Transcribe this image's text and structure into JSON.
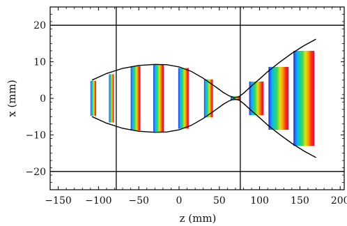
{
  "chart_data": {
    "type": "line",
    "xlabel": "z (mm)",
    "ylabel": "x (mm)",
    "xlim": [
      -160,
      205
    ],
    "ylim": [
      -25,
      25
    ],
    "grid": false,
    "x_ticks": [
      -150,
      -100,
      -50,
      0,
      50,
      100,
      150,
      200
    ],
    "y_ticks": [
      -20,
      -10,
      0,
      10,
      20
    ],
    "reference_lines": {
      "horizontal": [
        20,
        -20
      ],
      "vertical": [
        -78,
        76
      ]
    },
    "series": [
      {
        "role": "beam-envelope-upper",
        "x": [
          -108,
          -90,
          -70,
          -50,
          -30,
          -15,
          0,
          15,
          30,
          45,
          55,
          62,
          68,
          74,
          80,
          90,
          100,
          110,
          125,
          140,
          155,
          170
        ],
        "values": [
          5,
          6.8,
          8.2,
          9.0,
          9.3,
          9.2,
          8.6,
          7.4,
          5.5,
          3.2,
          1.6,
          0.7,
          0.2,
          0.4,
          1.4,
          3.4,
          5.3,
          7.3,
          9.9,
          12.3,
          14.4,
          16.2
        ]
      },
      {
        "role": "beam-envelope-lower",
        "x": [
          -108,
          -90,
          -70,
          -50,
          -30,
          -15,
          0,
          15,
          30,
          45,
          55,
          62,
          68,
          74,
          80,
          90,
          100,
          110,
          125,
          140,
          155,
          170
        ],
        "values": [
          -5,
          -6.8,
          -8.2,
          -9.0,
          -9.3,
          -9.2,
          -8.6,
          -7.4,
          -5.5,
          -3.2,
          -1.6,
          -0.7,
          -0.2,
          -0.4,
          -1.4,
          -3.4,
          -5.3,
          -7.3,
          -9.9,
          -12.3,
          -14.4,
          -16.2
        ]
      }
    ],
    "bands": [
      {
        "z0": -110,
        "z1": -103,
        "half_height": 4.8
      },
      {
        "z0": -87,
        "z1": -81,
        "half_height": 6.6
      },
      {
        "z0": -60,
        "z1": -48,
        "half_height": 8.8
      },
      {
        "z0": -32,
        "z1": -19,
        "half_height": 9.3
      },
      {
        "z0": -1,
        "z1": 12,
        "half_height": 8.3
      },
      {
        "z0": 31,
        "z1": 42,
        "half_height": 5.2
      },
      {
        "z0": 64,
        "z1": 76,
        "half_height": 0.6
      },
      {
        "z0": 87,
        "z1": 105,
        "half_height": 4.6
      },
      {
        "z0": 111,
        "z1": 136,
        "half_height": 8.6
      },
      {
        "z0": 142,
        "z1": 168,
        "half_height": 13.0
      }
    ],
    "spectrum_colors": [
      "#1a1aff",
      "#00a0ff",
      "#00d0a0",
      "#40d040",
      "#e8e000",
      "#ff9000",
      "#ff2000",
      "#d00060"
    ]
  }
}
